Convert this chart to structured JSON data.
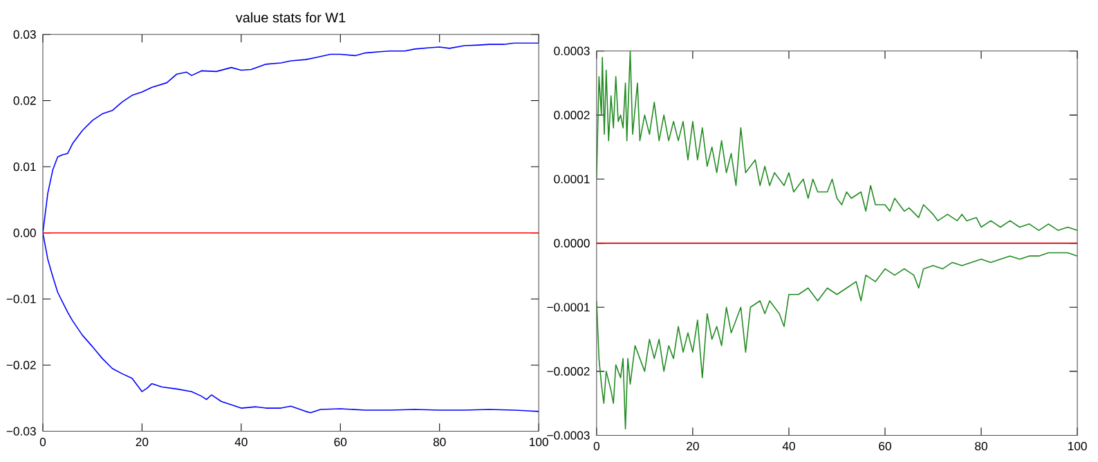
{
  "chart_data": [
    {
      "type": "line",
      "title": "value stats for W1",
      "xlim": [
        0,
        100
      ],
      "ylim": [
        -0.03,
        0.03
      ],
      "grid": false,
      "line_style": "solid",
      "xticks": [
        0,
        20,
        40,
        60,
        80,
        100
      ],
      "yticks": [
        {
          "value": -0.03,
          "label": "−0.03"
        },
        {
          "value": -0.02,
          "label": "−0.02"
        },
        {
          "value": -0.01,
          "label": "−0.01"
        },
        {
          "value": 0,
          "label": "0.00"
        },
        {
          "value": 0.01,
          "label": "0.01"
        },
        {
          "value": 0.02,
          "label": "0.02"
        },
        {
          "value": 0.03,
          "label": "0.03"
        }
      ],
      "series": [
        {
          "color": "#0000ff",
          "x": [
            100,
            98,
            95,
            93,
            90,
            88,
            85,
            82,
            80,
            78,
            75,
            73,
            70,
            68,
            65,
            63,
            60,
            58,
            55,
            53,
            50,
            48,
            45,
            42,
            40,
            38,
            35,
            32,
            30,
            29,
            27,
            25,
            22,
            20,
            18,
            16,
            14,
            12,
            10,
            8,
            6,
            5,
            4,
            3,
            2,
            1,
            0,
            1,
            2,
            3,
            4,
            5,
            6,
            8,
            10,
            12,
            14,
            16,
            18,
            20,
            21,
            22,
            24,
            27,
            30,
            32,
            33,
            34,
            36,
            38,
            40,
            43,
            45,
            48,
            50,
            53,
            54,
            56,
            60,
            65,
            70,
            75,
            80,
            85,
            90,
            95,
            100
          ],
          "values": [
            0.0287,
            0.0287,
            0.0287,
            0.0285,
            0.0285,
            0.0284,
            0.0283,
            0.0279,
            0.0281,
            0.028,
            0.0278,
            0.0275,
            0.0275,
            0.0274,
            0.0272,
            0.0268,
            0.027,
            0.027,
            0.0265,
            0.0262,
            0.026,
            0.0257,
            0.0255,
            0.0247,
            0.0246,
            0.025,
            0.0244,
            0.0245,
            0.0238,
            0.0243,
            0.024,
            0.0227,
            0.022,
            0.0213,
            0.0208,
            0.0198,
            0.0185,
            0.018,
            0.017,
            0.0155,
            0.0135,
            0.012,
            0.0118,
            0.0115,
            0.0095,
            0.006,
            0,
            -0.004,
            -0.0066,
            -0.009,
            -0.0105,
            -0.012,
            -0.0133,
            -0.0155,
            -0.0172,
            -0.019,
            -0.0205,
            -0.0213,
            -0.022,
            -0.024,
            -0.0235,
            -0.0228,
            -0.0233,
            -0.0236,
            -0.024,
            -0.0247,
            -0.0252,
            -0.0245,
            -0.0255,
            -0.026,
            -0.0265,
            -0.0263,
            -0.0265,
            -0.0265,
            -0.0262,
            -0.027,
            -0.0272,
            -0.0267,
            -0.0266,
            -0.0268,
            -0.0268,
            -0.0267,
            -0.0268,
            -0.0268,
            -0.0267,
            -0.0268,
            -0.027
          ]
        },
        {
          "color": "#ff0000",
          "x": [
            0,
            100
          ],
          "values": [
            0,
            0
          ]
        }
      ]
    },
    {
      "type": "line",
      "xlim": [
        0,
        100
      ],
      "ylim": [
        -0.0003,
        0.0003
      ],
      "grid": false,
      "line_style": "solid",
      "xticks": [
        0,
        20,
        40,
        60,
        80,
        100
      ],
      "yticks": [
        {
          "value": -0.0003,
          "label": "−0.0003"
        },
        {
          "value": -0.0002,
          "label": "−0.0002"
        },
        {
          "value": -0.0001,
          "label": "−0.0001"
        },
        {
          "value": 0,
          "label": "0.0000"
        },
        {
          "value": 0.0001,
          "label": "0.0001"
        },
        {
          "value": 0.0002,
          "label": "0.0002"
        },
        {
          "value": 0.0003,
          "label": "0.0003"
        }
      ],
      "series": [
        {
          "color": "#228b22",
          "x": [
            0,
            0.5,
            1,
            1.2,
            1.6,
            2,
            2.5,
            3,
            3.5,
            4,
            4.5,
            5,
            5.5,
            6,
            6.3,
            7,
            7.5,
            8.5,
            9,
            10,
            11,
            12,
            13,
            14,
            15,
            16,
            17,
            18,
            19,
            20,
            21,
            22,
            23,
            24,
            25,
            26,
            27,
            28,
            29,
            30,
            31,
            33,
            34,
            35,
            36,
            37,
            39,
            40,
            41,
            43,
            44,
            45,
            46,
            48,
            49,
            50,
            51,
            52,
            53,
            55,
            56,
            57,
            58,
            60,
            61,
            62,
            64,
            65,
            67,
            68,
            70,
            71,
            73,
            75,
            76,
            77,
            79,
            80,
            82,
            84,
            86,
            88,
            90,
            92,
            94,
            96,
            98,
            100
          ],
          "values": [
            0.0001,
            0.00026,
            0.0002,
            0.00029,
            0.00017,
            0.00027,
            0.00016,
            0.00023,
            0.00018,
            0.00026,
            0.00019,
            0.0002,
            0.00018,
            0.00025,
            0.00016,
            0.0003,
            0.00017,
            0.00025,
            0.00016,
            0.0002,
            0.00017,
            0.00022,
            0.00016,
            0.0002,
            0.00016,
            0.00019,
            0.00016,
            0.00019,
            0.00013,
            0.00019,
            0.00013,
            0.00018,
            0.00012,
            0.00015,
            0.00011,
            0.00016,
            0.00011,
            0.00014,
            9e-05,
            0.00018,
            0.00011,
            0.00013,
            9e-05,
            0.00012,
            9e-05,
            0.00011,
            9e-05,
            0.00011,
            8e-05,
            0.0001,
            7e-05,
            0.0001,
            8e-05,
            8e-05,
            0.0001,
            7e-05,
            6e-05,
            8e-05,
            7e-05,
            8e-05,
            5e-05,
            9e-05,
            6e-05,
            6e-05,
            5e-05,
            7e-05,
            5e-05,
            5.5e-05,
            4e-05,
            6e-05,
            4.5e-05,
            3.5e-05,
            4.5e-05,
            3.5e-05,
            4.5e-05,
            3.5e-05,
            4e-05,
            2.5e-05,
            3.5e-05,
            2.5e-05,
            3.5e-05,
            2.5e-05,
            3e-05,
            2e-05,
            3e-05,
            2e-05,
            2.5e-05,
            2e-05
          ]
        },
        {
          "color": "#228b22",
          "x": [
            0,
            0.5,
            1,
            1.5,
            2,
            3,
            3.5,
            4,
            5,
            5.5,
            6,
            6.5,
            7,
            8,
            9,
            10,
            11,
            12,
            13,
            14,
            15,
            16,
            17,
            18,
            19,
            20,
            21,
            22,
            23,
            24,
            25,
            26,
            27,
            28,
            29,
            30,
            31,
            32,
            34,
            35,
            36,
            38,
            39,
            40,
            42,
            44,
            46,
            48,
            50,
            52,
            54,
            55,
            56,
            58,
            60,
            62,
            64,
            66,
            67,
            68,
            70,
            72,
            74,
            76,
            78,
            80,
            82,
            84,
            86,
            88,
            90,
            92,
            94,
            96,
            98,
            100
          ],
          "values": [
            -9e-05,
            -0.00018,
            -0.00022,
            -0.00025,
            -0.0002,
            -0.00023,
            -0.00025,
            -0.00019,
            -0.00021,
            -0.00018,
            -0.00029,
            -0.00018,
            -0.00022,
            -0.00016,
            -0.00018,
            -0.0002,
            -0.00015,
            -0.00018,
            -0.00015,
            -0.0002,
            -0.00016,
            -0.00018,
            -0.00013,
            -0.00017,
            -0.00014,
            -0.00017,
            -0.00012,
            -0.00021,
            -0.00011,
            -0.00015,
            -0.00013,
            -0.00016,
            -0.0001,
            -0.00014,
            -0.00012,
            -0.0001,
            -0.00017,
            -0.0001,
            -9e-05,
            -0.00011,
            -9e-05,
            -0.00011,
            -0.00013,
            -8e-05,
            -8e-05,
            -7e-05,
            -9e-05,
            -7e-05,
            -8e-05,
            -7e-05,
            -6e-05,
            -9e-05,
            -5e-05,
            -6e-05,
            -4e-05,
            -5e-05,
            -4e-05,
            -5e-05,
            -7e-05,
            -4e-05,
            -3.5e-05,
            -4e-05,
            -3e-05,
            -3.5e-05,
            -3e-05,
            -2.5e-05,
            -3e-05,
            -2.5e-05,
            -2e-05,
            -2.5e-05,
            -2e-05,
            -2e-05,
            -1.5e-05,
            -1.5e-05,
            -1.5e-05,
            -2e-05
          ]
        },
        {
          "color": "#cc0000",
          "x": [
            0,
            100
          ],
          "values": [
            0,
            0
          ]
        }
      ]
    }
  ]
}
